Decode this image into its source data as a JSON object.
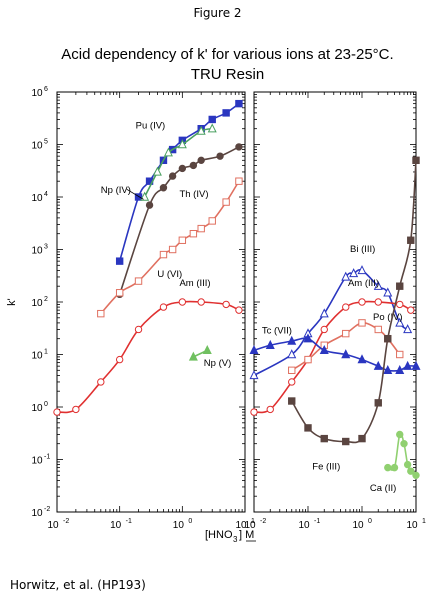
{
  "figure_label": "Figure 2",
  "title_line1": "Acid dependency of k' for various ions at 23-25°C.",
  "title_line2": "TRU Resin",
  "credit": "Horwitz, et al. (HP193)",
  "colors": {
    "pu": "#2a36c0",
    "np4": "#4a4a9e",
    "th": "#5a4540",
    "u": "#e07060",
    "am": "#e03030",
    "np5": "#70c060",
    "am_fill": "#ffffff",
    "bi": "#2a36c0",
    "po": "#e07060",
    "tc": "#2a36c0",
    "fe": "#5a4540",
    "ca": "#90d070",
    "green_tri": "#50a050"
  },
  "chart_data": [
    {
      "type": "line",
      "yscale": "log",
      "xscale": "log",
      "xlim": [
        0.01,
        10
      ],
      "ylim": [
        0.01,
        1000000
      ],
      "ylabel": "k'",
      "xticks": [
        "10",
        "10",
        "10",
        "10"
      ],
      "xtick_exp": [
        "-2",
        "-1",
        "0",
        "1"
      ],
      "yticks": [
        "10",
        "10",
        "10",
        "10",
        "10",
        "10",
        "10",
        "10",
        "10"
      ],
      "ytick_exp": [
        "-2",
        "-1",
        "0",
        "1",
        "2",
        "3",
        "4",
        "5",
        "6"
      ],
      "series": [
        {
          "name": "Pu (IV)",
          "marker": "square-filled",
          "color": "#2a36c0",
          "x": [
            0.1,
            0.2,
            0.3,
            0.5,
            0.7,
            1,
            2,
            3,
            5,
            8
          ],
          "y": [
            600,
            10000,
            20000,
            50000,
            80000,
            120000,
            200000,
            300000,
            400000,
            600000
          ],
          "label_pos": [
            0.18,
            200000
          ]
        },
        {
          "name": "Np (IV)",
          "marker": "triangle-open",
          "color": "#4aa060",
          "x": [
            0.25,
            0.4,
            0.6,
            1,
            2,
            3
          ],
          "y": [
            10000,
            30000,
            70000,
            100000,
            180000,
            200000
          ],
          "label_pos": [
            0.05,
            12000
          ]
        },
        {
          "name": "Th (IV)",
          "marker": "circle-filled",
          "color": "#5a4540",
          "x": [
            0.1,
            0.3,
            0.5,
            0.7,
            1,
            1.5,
            2,
            4,
            8
          ],
          "y": [
            140,
            7000,
            15000,
            25000,
            35000,
            40000,
            50000,
            60000,
            90000
          ],
          "label_pos": [
            0.9,
            10000
          ]
        },
        {
          "name": "U (VI)",
          "marker": "square-open",
          "color": "#e07060",
          "x": [
            0.05,
            0.1,
            0.2,
            0.5,
            0.7,
            1,
            1.5,
            2,
            3,
            5,
            8
          ],
          "y": [
            60,
            150,
            250,
            800,
            1000,
            1500,
            2000,
            2500,
            3500,
            8000,
            20000
          ],
          "label_pos": [
            0.4,
            300
          ]
        },
        {
          "name": "Am (III)",
          "marker": "circle-open",
          "color": "#e03030",
          "x": [
            0.01,
            0.02,
            0.05,
            0.1,
            0.2,
            0.5,
            1,
            2,
            5,
            8
          ],
          "y": [
            0.8,
            0.9,
            3,
            8,
            30,
            80,
            100,
            100,
            90,
            70
          ],
          "label_pos": [
            0.9,
            200
          ]
        },
        {
          "name": "Np (V)",
          "marker": "triangle-filled",
          "color": "#70c060",
          "x": [
            1.5,
            2.5
          ],
          "y": [
            9,
            12
          ],
          "label_pos": [
            2.2,
            6
          ]
        }
      ]
    },
    {
      "type": "line",
      "yscale": "log",
      "xscale": "log",
      "xlim": [
        0.01,
        10
      ],
      "ylim": [
        0.01,
        1000000
      ],
      "xlabel": "[HNO",
      "xlabel_sub": "3",
      "xlabel_unit": "] M",
      "xticks": [
        "10",
        "10",
        "10",
        "10"
      ],
      "xtick_exp": [
        "-2",
        "-1",
        "0",
        "1"
      ],
      "series": [
        {
          "name": "Bi (III)",
          "marker": "triangle-open",
          "color": "#2a36c0",
          "x": [
            0.01,
            0.05,
            0.1,
            0.2,
            0.5,
            0.7,
            1,
            2,
            3,
            5,
            7
          ],
          "y": [
            4,
            10,
            25,
            60,
            300,
            350,
            400,
            200,
            150,
            40,
            30
          ],
          "label_pos": [
            0.6,
            900
          ]
        },
        {
          "name": "Am (III)",
          "marker": "circle-open",
          "color": "#e03030",
          "x": [
            0.01,
            0.02,
            0.05,
            0.1,
            0.2,
            0.5,
            1,
            2,
            5,
            8
          ],
          "y": [
            0.8,
            0.9,
            3,
            8,
            30,
            80,
            100,
            100,
            90,
            70
          ],
          "label_pos": [
            0.55,
            200
          ]
        },
        {
          "name": "Po (IV)",
          "marker": "square-open",
          "color": "#e07060",
          "x": [
            0.05,
            0.1,
            0.2,
            0.5,
            1,
            2,
            3,
            5
          ],
          "y": [
            5,
            8,
            15,
            25,
            40,
            30,
            20,
            10
          ],
          "label_pos": [
            1.6,
            45
          ]
        },
        {
          "name": "Tc (VII)",
          "marker": "triangle-filled",
          "color": "#2a36c0",
          "x": [
            0.01,
            0.02,
            0.05,
            0.1,
            0.2,
            0.5,
            1,
            2,
            3,
            5,
            7,
            10
          ],
          "y": [
            12,
            15,
            18,
            20,
            12,
            10,
            8,
            6,
            5,
            5,
            6,
            6
          ],
          "label_pos": [
            0.014,
            25
          ]
        },
        {
          "name": "Fe (III)",
          "marker": "square-filled",
          "color": "#5a4540",
          "x": [
            0.05,
            0.1,
            0.2,
            0.5,
            1,
            2,
            3,
            5,
            8,
            10
          ],
          "y": [
            1.3,
            0.4,
            0.25,
            0.22,
            0.25,
            1.2,
            20,
            200,
            1500,
            50000
          ],
          "label_pos": [
            0.12,
            0.065
          ]
        },
        {
          "name": "Ca (II)",
          "marker": "circle-filled",
          "color": "#90d070",
          "x": [
            3,
            4,
            5,
            6,
            7,
            8,
            10
          ],
          "y": [
            0.07,
            0.07,
            0.3,
            0.2,
            0.08,
            0.06,
            0.05
          ],
          "label_pos": [
            1.4,
            0.025
          ]
        }
      ]
    }
  ]
}
